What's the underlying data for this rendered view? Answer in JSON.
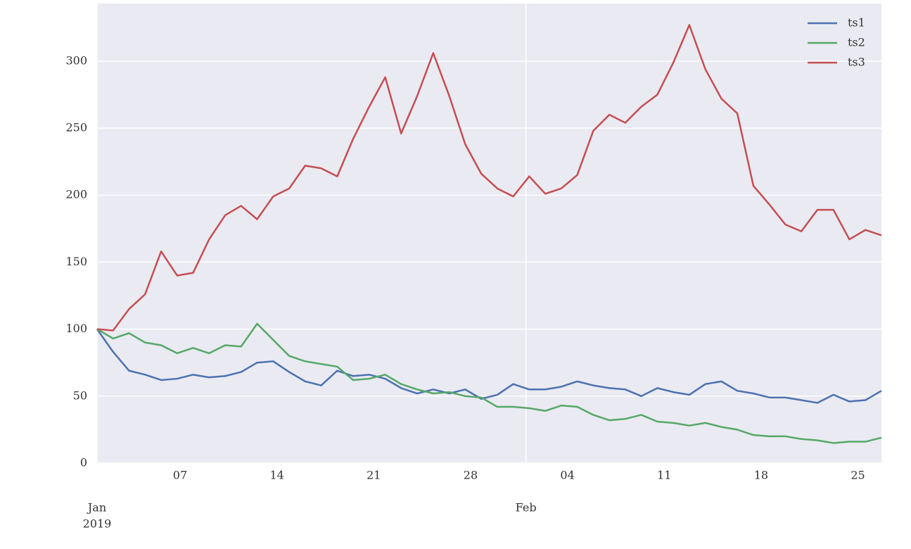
{
  "chart_data": {
    "type": "line",
    "x": [
      0,
      1.16,
      2.31,
      3.47,
      4.63,
      5.79,
      6.94,
      8.1,
      9.26,
      10.41,
      11.57,
      12.73,
      13.89,
      15.04,
      16.2,
      17.36,
      18.51,
      19.67,
      20.83,
      21.98,
      23.14,
      24.3,
      25.46,
      26.61,
      27.77,
      28.93,
      30.08,
      31.24,
      32.4,
      33.56,
      34.71,
      35.87,
      37.03,
      38.18,
      39.34,
      40.5,
      41.66,
      42.81,
      43.97,
      45.13,
      46.28,
      47.44,
      48.6,
      49.76,
      50.91,
      52.07,
      53.23,
      54.38,
      55.54,
      56.7
    ],
    "series": [
      {
        "name": "ts1",
        "color": "#4c72b0",
        "values": [
          100,
          83,
          69,
          66,
          62,
          63,
          66,
          64,
          65,
          68,
          75,
          76,
          68,
          61,
          58,
          69,
          65,
          66,
          63,
          56,
          52,
          55,
          52,
          55,
          48,
          51,
          59,
          55,
          55,
          57,
          61,
          58,
          56,
          55,
          50,
          56,
          53,
          51,
          59,
          61,
          54,
          52,
          49,
          49,
          47,
          45,
          51,
          46,
          47,
          54
        ]
      },
      {
        "name": "ts2",
        "color": "#55a868",
        "values": [
          100,
          93,
          97,
          90,
          88,
          82,
          86,
          82,
          88,
          87,
          104,
          92,
          80,
          76,
          74,
          72,
          62,
          63,
          66,
          59,
          55,
          52,
          53,
          50,
          49,
          42,
          42,
          41,
          39,
          43,
          42,
          36,
          32,
          33,
          36,
          31,
          30,
          28,
          30,
          27,
          25,
          21,
          20,
          20,
          18,
          17,
          15,
          16,
          16,
          19
        ]
      },
      {
        "name": "ts3",
        "color": "#c44e52",
        "values": [
          100,
          99,
          115,
          126,
          158,
          140,
          142,
          167,
          185,
          192,
          182,
          199,
          205,
          222,
          220,
          214,
          242,
          266,
          288,
          246,
          274,
          306,
          274,
          238,
          216,
          205,
          199,
          214,
          201,
          205,
          215,
          248,
          260,
          254,
          266,
          275,
          299,
          327,
          294,
          272,
          261,
          207,
          193,
          178,
          173,
          189,
          189,
          167,
          174,
          170
        ]
      }
    ],
    "xlim": [
      0,
      56.7
    ],
    "xticks": [
      {
        "value": 6,
        "label": "07"
      },
      {
        "value": 13,
        "label": "14"
      },
      {
        "value": 20,
        "label": "21"
      },
      {
        "value": 27,
        "label": "28"
      },
      {
        "value": 34,
        "label": "04"
      },
      {
        "value": 41,
        "label": "11"
      },
      {
        "value": 48,
        "label": "18"
      },
      {
        "value": 55,
        "label": "25"
      }
    ],
    "xticks_major": [
      {
        "value": 0,
        "label": [
          "Jan",
          "2019"
        ]
      },
      {
        "value": 31,
        "label": [
          "Feb"
        ]
      }
    ],
    "ylim": [
      0,
      343
    ],
    "yticks": [
      0,
      50,
      100,
      150,
      200,
      250,
      300
    ],
    "grid": true,
    "legend": "upper right"
  }
}
